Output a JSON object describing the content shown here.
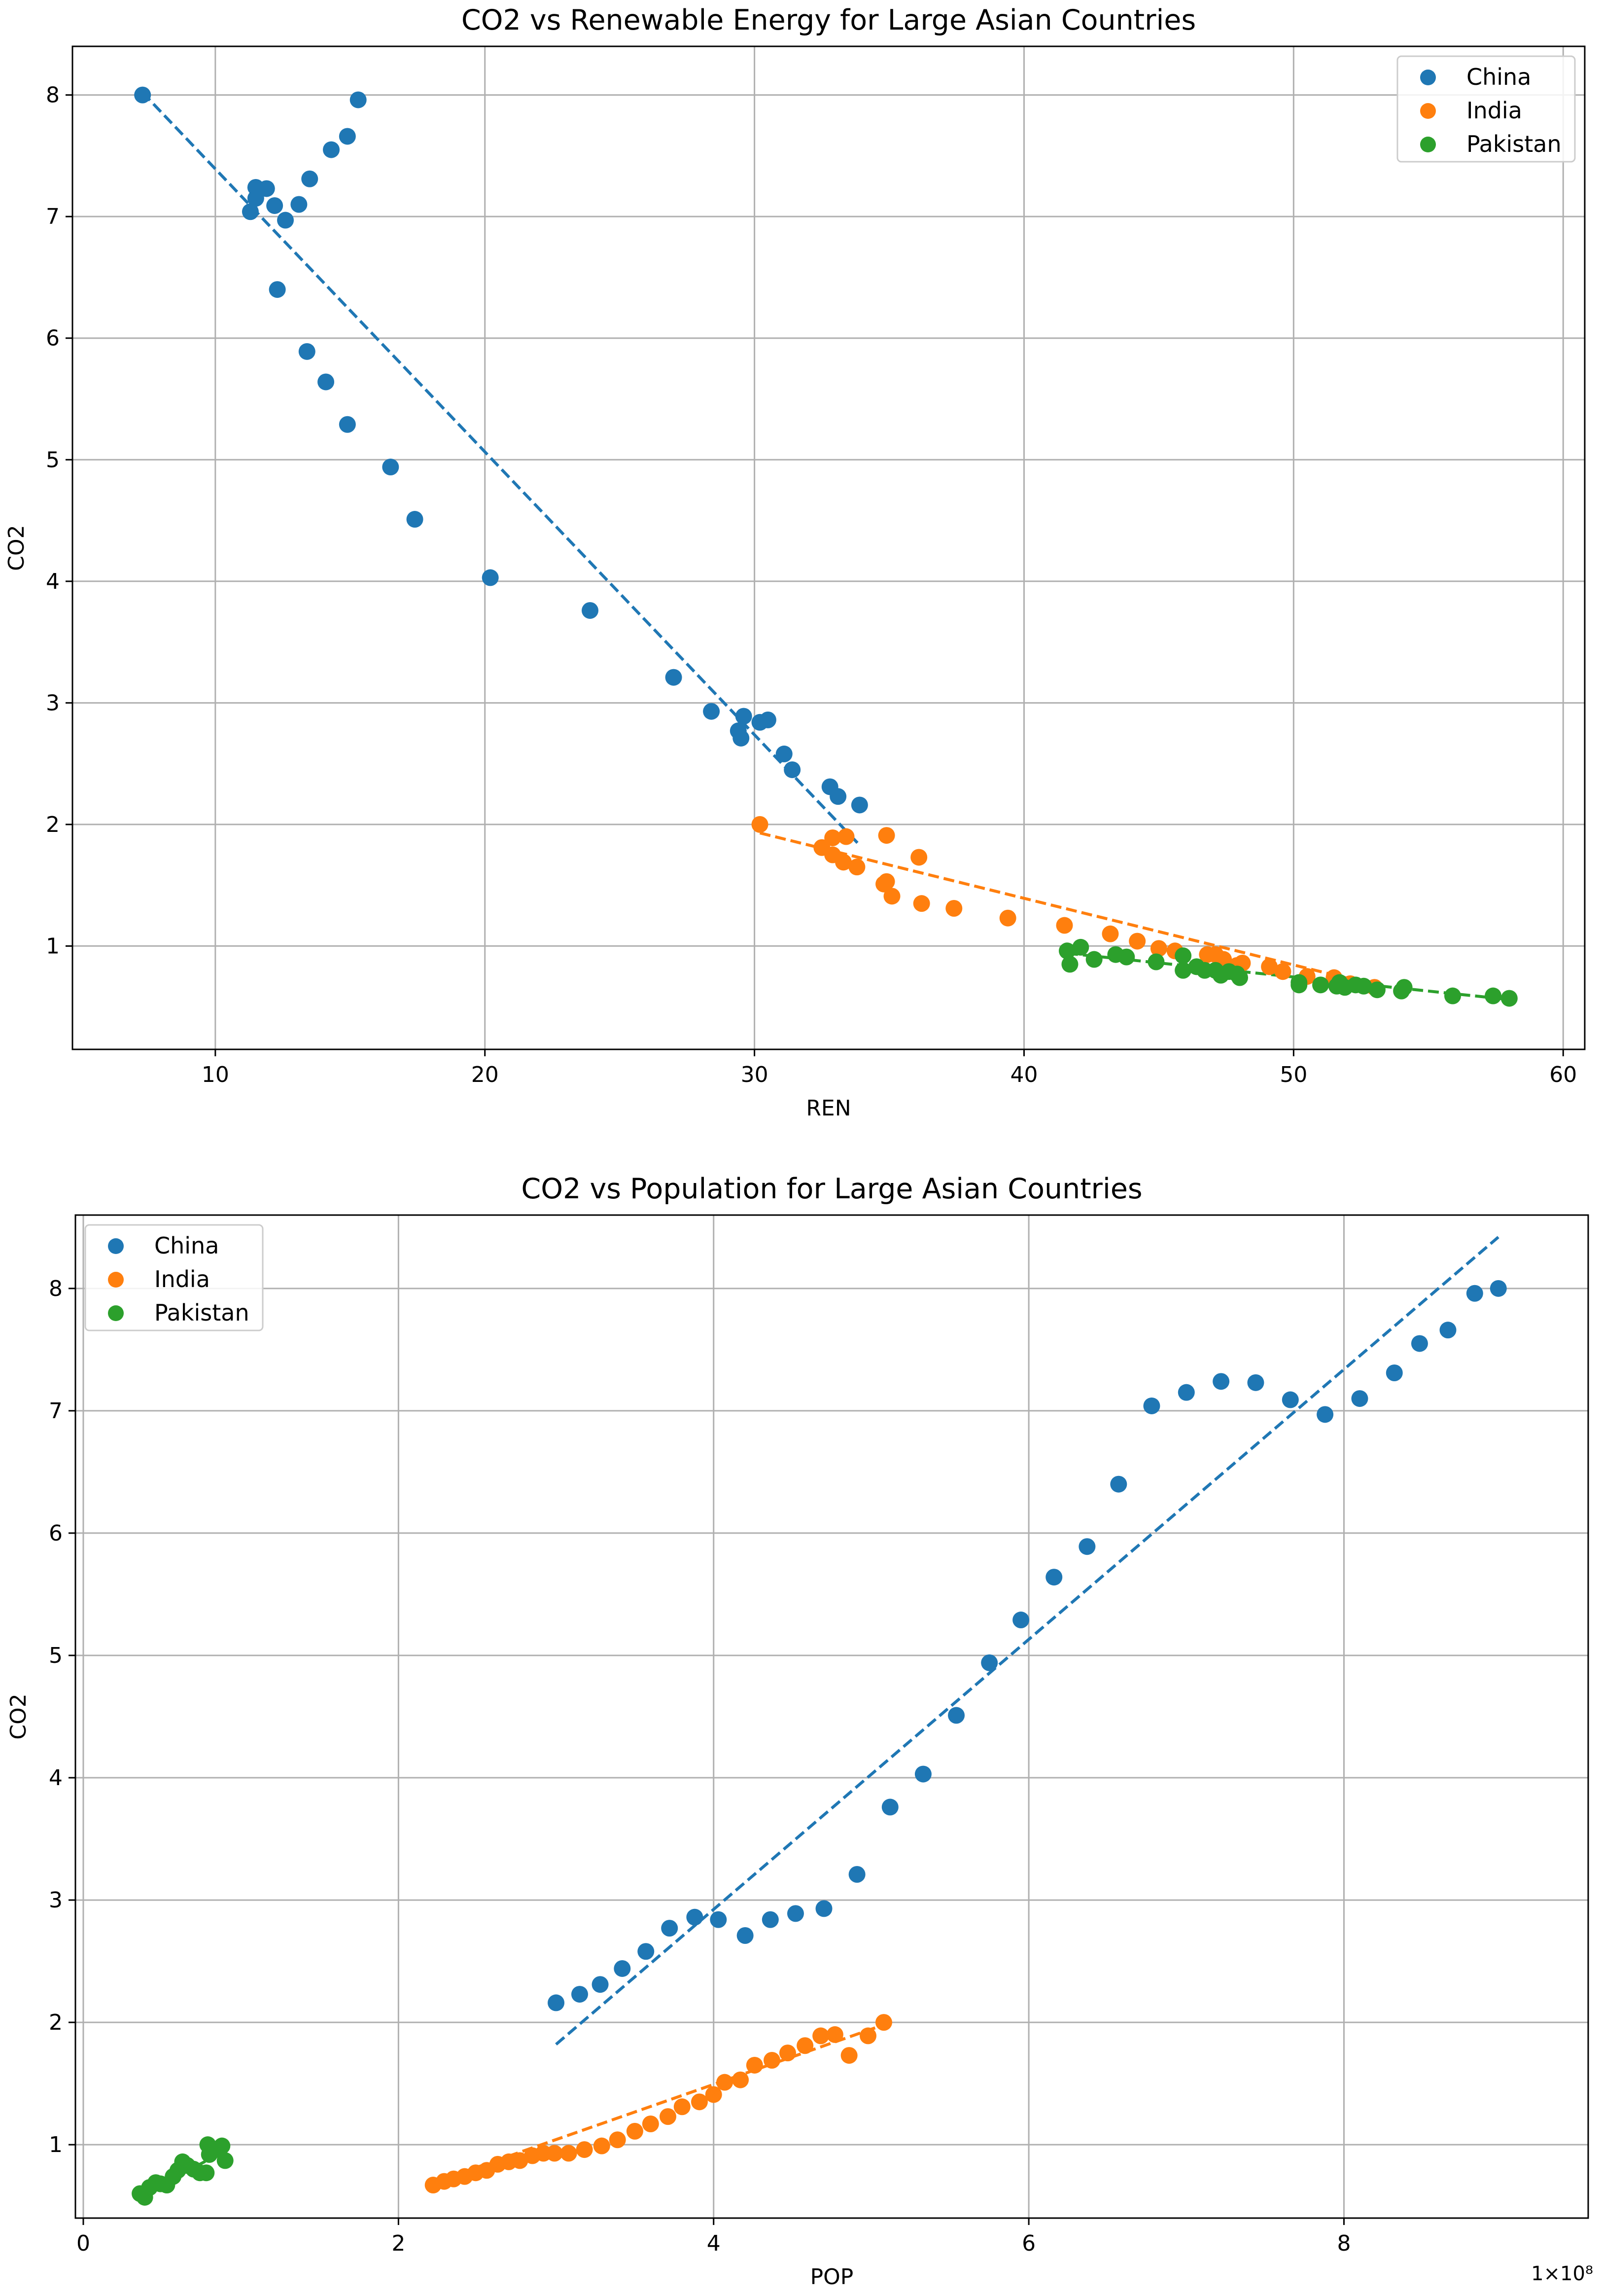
{
  "chart_data": [
    {
      "type": "scatter",
      "title": "CO2 vs Renewable Energy for Large Asian Countries",
      "xlabel": "REN",
      "ylabel": "CO2",
      "xlim": [
        4.7,
        60.8
      ],
      "ylim": [
        0.15,
        8.4
      ],
      "xticks": [
        10,
        20,
        30,
        40,
        50,
        60
      ],
      "yticks": [
        1,
        2,
        3,
        4,
        5,
        6,
        7,
        8
      ],
      "grid": true,
      "legend_position": "top-right",
      "series": [
        {
          "name": "China",
          "color": "#1f77b4",
          "points": [
            [
              7.3,
              8.0
            ],
            [
              15.3,
              7.96
            ],
            [
              14.9,
              7.66
            ],
            [
              14.3,
              7.55
            ],
            [
              13.5,
              7.31
            ],
            [
              11.5,
              7.24
            ],
            [
              11.9,
              7.23
            ],
            [
              11.5,
              7.15
            ],
            [
              13.1,
              7.1
            ],
            [
              12.2,
              7.09
            ],
            [
              11.3,
              7.04
            ],
            [
              12.6,
              6.97
            ],
            [
              12.3,
              6.4
            ],
            [
              13.4,
              5.89
            ],
            [
              14.1,
              5.64
            ],
            [
              14.9,
              5.29
            ],
            [
              16.5,
              4.94
            ],
            [
              17.4,
              4.51
            ],
            [
              20.2,
              4.03
            ],
            [
              23.9,
              3.76
            ],
            [
              27.0,
              3.21
            ],
            [
              28.4,
              2.93
            ],
            [
              29.6,
              2.89
            ],
            [
              29.4,
              2.77
            ],
            [
              30.5,
              2.86
            ],
            [
              30.2,
              2.84
            ],
            [
              29.5,
              2.71
            ],
            [
              31.1,
              2.58
            ],
            [
              31.4,
              2.45
            ],
            [
              32.8,
              2.31
            ],
            [
              33.1,
              2.23
            ],
            [
              33.9,
              2.16
            ]
          ],
          "fit": {
            "x": [
              7.3,
              33.9
            ],
            "y": [
              8.02,
              1.83
            ]
          }
        },
        {
          "name": "India",
          "color": "#ff7f0e",
          "points": [
            [
              30.2,
              2.0
            ],
            [
              32.5,
              1.81
            ],
            [
              32.9,
              1.89
            ],
            [
              33.4,
              1.9
            ],
            [
              34.9,
              1.91
            ],
            [
              36.1,
              1.73
            ],
            [
              32.9,
              1.75
            ],
            [
              33.3,
              1.69
            ],
            [
              33.8,
              1.65
            ],
            [
              34.9,
              1.53
            ],
            [
              34.8,
              1.51
            ],
            [
              35.1,
              1.41
            ],
            [
              36.2,
              1.35
            ],
            [
              37.4,
              1.31
            ],
            [
              39.4,
              1.23
            ],
            [
              41.5,
              1.17
            ],
            [
              43.2,
              1.1
            ],
            [
              44.2,
              1.04
            ],
            [
              45.0,
              0.98
            ],
            [
              45.6,
              0.96
            ],
            [
              46.8,
              0.93
            ],
            [
              47.1,
              0.93
            ],
            [
              47.4,
              0.89
            ],
            [
              48.1,
              0.86
            ],
            [
              47.9,
              0.84
            ],
            [
              49.1,
              0.83
            ],
            [
              49.6,
              0.79
            ],
            [
              50.5,
              0.75
            ],
            [
              51.5,
              0.74
            ],
            [
              52.1,
              0.69
            ],
            [
              53.0,
              0.66
            ]
          ],
          "fit": {
            "x": [
              30.2,
              53.0
            ],
            "y": [
              1.93,
              0.68
            ]
          }
        },
        {
          "name": "Pakistan",
          "color": "#2ca02c",
          "points": [
            [
              41.6,
              0.96
            ],
            [
              42.1,
              0.99
            ],
            [
              41.7,
              0.85
            ],
            [
              42.6,
              0.89
            ],
            [
              43.4,
              0.93
            ],
            [
              43.8,
              0.91
            ],
            [
              44.9,
              0.87
            ],
            [
              45.9,
              0.92
            ],
            [
              45.9,
              0.8
            ],
            [
              46.4,
              0.83
            ],
            [
              46.7,
              0.8
            ],
            [
              47.1,
              0.8
            ],
            [
              47.3,
              0.76
            ],
            [
              47.6,
              0.79
            ],
            [
              47.9,
              0.77
            ],
            [
              48.0,
              0.74
            ],
            [
              50.2,
              0.68
            ],
            [
              50.2,
              0.7
            ],
            [
              51.0,
              0.68
            ],
            [
              51.6,
              0.67
            ],
            [
              51.7,
              0.7
            ],
            [
              51.9,
              0.66
            ],
            [
              52.3,
              0.68
            ],
            [
              53.1,
              0.64
            ],
            [
              54.0,
              0.63
            ],
            [
              54.1,
              0.66
            ],
            [
              55.9,
              0.59
            ],
            [
              57.4,
              0.59
            ],
            [
              58.0,
              0.57
            ],
            [
              52.6,
              0.67
            ]
          ],
          "fit": {
            "x": [
              41.6,
              58.0
            ],
            "y": [
              0.94,
              0.56
            ]
          }
        }
      ]
    },
    {
      "type": "scatter",
      "title": "CO2 vs Population for Large Asian Countries",
      "xlabel": "POP",
      "ylabel": "CO2",
      "x_offset_label": "1×10⁸",
      "xlim": [
        -0.05,
        9.55
      ],
      "ylim": [
        0.4,
        8.6
      ],
      "xticks": [
        0,
        2,
        4,
        6,
        8
      ],
      "yticks": [
        1,
        2,
        3,
        4,
        5,
        6,
        7,
        8
      ],
      "grid": true,
      "legend_position": "top-left",
      "series": [
        {
          "name": "China",
          "color": "#1f77b4",
          "points": [
            [
              3.0,
              2.16
            ],
            [
              3.15,
              2.23
            ],
            [
              3.28,
              2.31
            ],
            [
              3.42,
              2.44
            ],
            [
              3.57,
              2.58
            ],
            [
              3.72,
              2.77
            ],
            [
              3.88,
              2.86
            ],
            [
              4.03,
              2.84
            ],
            [
              4.2,
              2.71
            ],
            [
              4.36,
              2.84
            ],
            [
              4.52,
              2.89
            ],
            [
              4.7,
              2.93
            ],
            [
              4.91,
              3.21
            ],
            [
              5.12,
              3.76
            ],
            [
              5.33,
              4.03
            ],
            [
              5.54,
              4.51
            ],
            [
              5.75,
              4.94
            ],
            [
              5.95,
              5.29
            ],
            [
              6.16,
              5.64
            ],
            [
              6.37,
              5.89
            ],
            [
              6.57,
              6.4
            ],
            [
              6.78,
              7.04
            ],
            [
              7.0,
              7.15
            ],
            [
              7.22,
              7.24
            ],
            [
              7.44,
              7.23
            ],
            [
              7.66,
              7.09
            ],
            [
              7.88,
              6.97
            ],
            [
              8.1,
              7.1
            ],
            [
              8.32,
              7.31
            ],
            [
              8.48,
              7.55
            ],
            [
              8.66,
              7.66
            ],
            [
              8.83,
              7.96
            ],
            [
              8.98,
              8.0
            ]
          ],
          "fit": {
            "x": [
              3.0,
              8.98
            ],
            "y": [
              1.82,
              8.42
            ]
          }
        },
        {
          "name": "India",
          "color": "#ff7f0e",
          "points": [
            [
              2.22,
              0.67
            ],
            [
              2.29,
              0.7
            ],
            [
              2.35,
              0.72
            ],
            [
              2.42,
              0.74
            ],
            [
              2.49,
              0.77
            ],
            [
              2.56,
              0.79
            ],
            [
              2.63,
              0.84
            ],
            [
              2.7,
              0.86
            ],
            [
              2.77,
              0.87
            ],
            [
              2.85,
              0.91
            ],
            [
              2.92,
              0.93
            ],
            [
              2.99,
              0.93
            ],
            [
              3.08,
              0.93
            ],
            [
              3.18,
              0.96
            ],
            [
              3.29,
              0.99
            ],
            [
              3.39,
              1.04
            ],
            [
              3.5,
              1.11
            ],
            [
              3.6,
              1.17
            ],
            [
              3.71,
              1.23
            ],
            [
              3.8,
              1.31
            ],
            [
              3.91,
              1.35
            ],
            [
              4.0,
              1.41
            ],
            [
              4.07,
              1.51
            ],
            [
              4.17,
              1.53
            ],
            [
              4.26,
              1.65
            ],
            [
              4.37,
              1.69
            ],
            [
              4.47,
              1.75
            ],
            [
              4.58,
              1.81
            ],
            [
              4.68,
              1.89
            ],
            [
              4.77,
              1.9
            ],
            [
              4.86,
              1.73
            ],
            [
              4.98,
              1.89
            ],
            [
              5.08,
              2.0
            ]
          ],
          "fit": {
            "x": [
              2.22,
              5.08
            ],
            "y": [
              0.69,
              1.98
            ]
          }
        },
        {
          "name": "Pakistan",
          "color": "#2ca02c",
          "points": [
            [
              0.36,
              0.6
            ],
            [
              0.39,
              0.57
            ],
            [
              0.42,
              0.65
            ],
            [
              0.46,
              0.69
            ],
            [
              0.49,
              0.68
            ],
            [
              0.53,
              0.67
            ],
            [
              0.57,
              0.74
            ],
            [
              0.6,
              0.79
            ],
            [
              0.63,
              0.86
            ],
            [
              0.66,
              0.83
            ],
            [
              0.7,
              0.8
            ],
            [
              0.74,
              0.77
            ],
            [
              0.78,
              0.77
            ],
            [
              0.8,
              0.92
            ],
            [
              0.79,
              1.0
            ],
            [
              0.84,
              0.96
            ],
            [
              0.88,
              0.99
            ],
            [
              0.9,
              0.87
            ]
          ],
          "fit": {
            "x": [
              0.36,
              0.9
            ],
            "y": [
              0.58,
              0.95
            ]
          }
        }
      ]
    }
  ]
}
